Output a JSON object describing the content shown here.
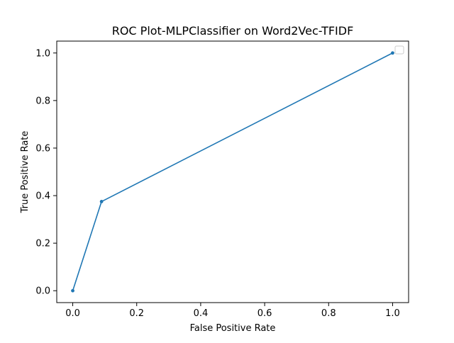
{
  "chart_data": {
    "type": "line",
    "title": "ROC Plot-MLPClassifier on Word2Vec-TFIDF",
    "xlabel": "False Positive Rate",
    "ylabel": "True Positive Rate",
    "xlim": [
      -0.05,
      1.05
    ],
    "ylim": [
      -0.05,
      1.05
    ],
    "xticks": [
      0.0,
      0.2,
      0.4,
      0.6,
      0.8,
      1.0
    ],
    "yticks": [
      0.0,
      0.2,
      0.4,
      0.6,
      0.8,
      1.0
    ],
    "xtick_labels": [
      "0.0",
      "0.2",
      "0.4",
      "0.6",
      "0.8",
      "1.0"
    ],
    "ytick_labels": [
      "0.0",
      "0.2",
      "0.4",
      "0.6",
      "0.8",
      "1.0"
    ],
    "grid": false,
    "legend": "top-right",
    "series": [
      {
        "color": "#1f77b4",
        "marker": "circle",
        "x": [
          0.0,
          0.09,
          1.0
        ],
        "y": [
          0.0,
          0.375,
          1.0
        ]
      }
    ]
  }
}
